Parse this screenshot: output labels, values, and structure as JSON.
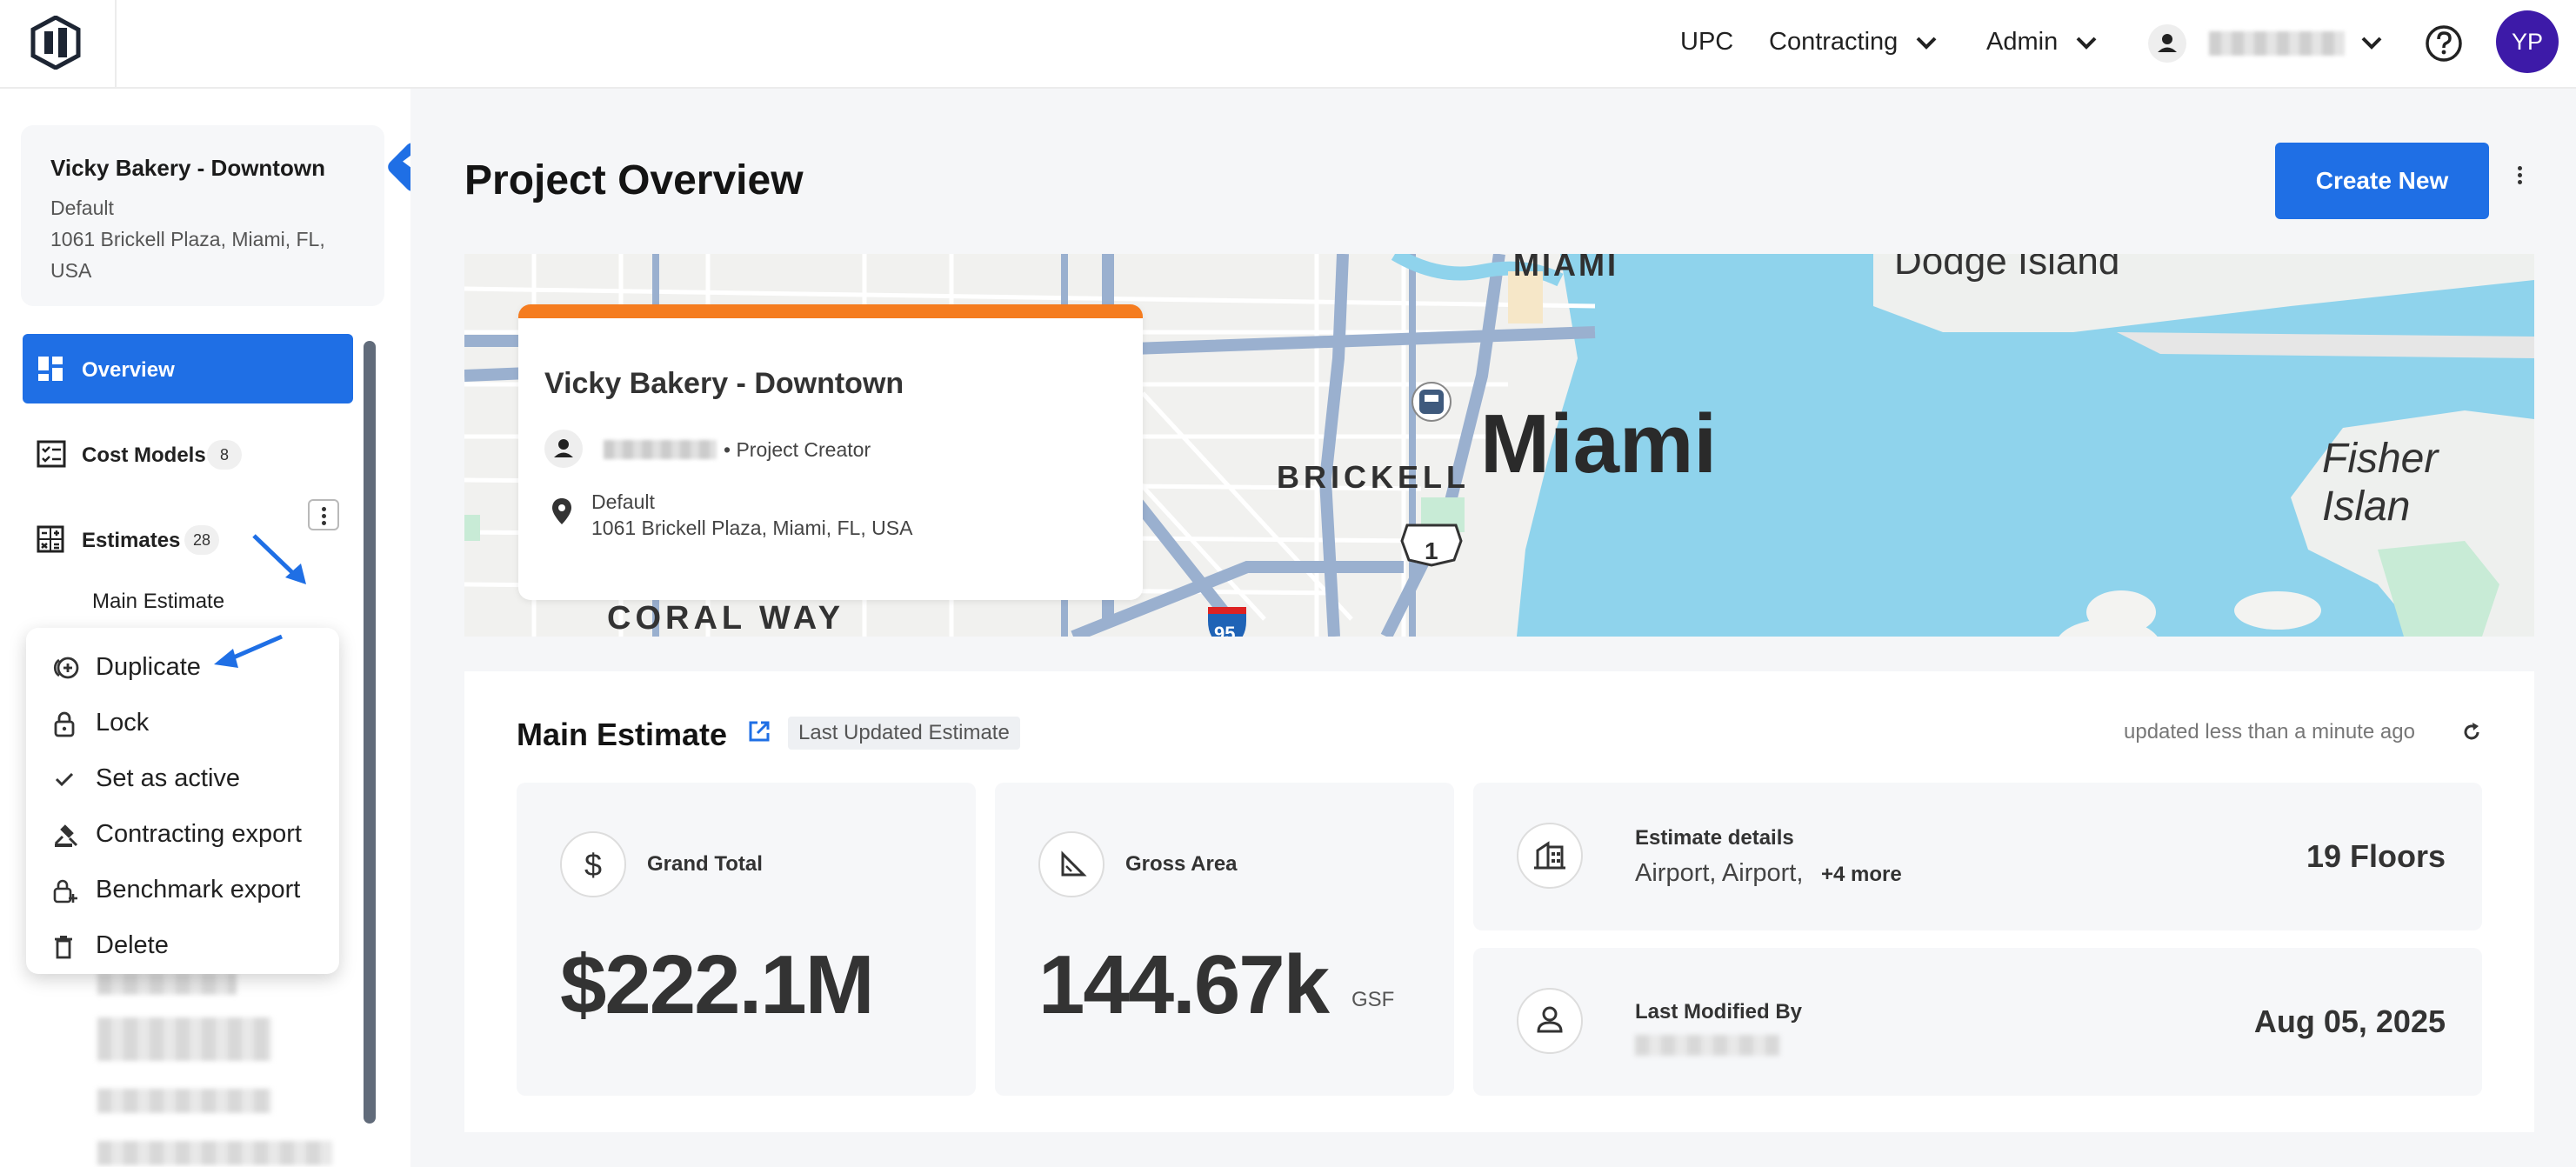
{
  "topbar": {
    "nav_upc": "UPC",
    "nav_contracting": "Contracting",
    "nav_admin": "Admin",
    "avatar_initials": "YP"
  },
  "sidebar": {
    "project_name": "Vicky Bakery - Downtown",
    "project_type": "Default",
    "project_address": "1061 Brickell Plaza, Miami, FL, USA",
    "items": [
      {
        "label": "Overview",
        "icon": "overview-grid-icon"
      },
      {
        "label": "Cost Models",
        "count": "8",
        "icon": "cost-models-icon"
      },
      {
        "label": "Estimates",
        "count": "28",
        "icon": "calculator-icon"
      }
    ],
    "sub_estimate": "Main Estimate"
  },
  "context_menu": {
    "items": [
      {
        "label": "Duplicate",
        "icon": "duplicate-icon"
      },
      {
        "label": "Lock",
        "icon": "lock-icon"
      },
      {
        "label": "Set as active",
        "icon": "check-icon"
      },
      {
        "label": "Contracting export",
        "icon": "gavel-icon"
      },
      {
        "label": "Benchmark export",
        "icon": "benchmark-lock-icon"
      },
      {
        "label": "Delete",
        "icon": "trash-icon"
      }
    ]
  },
  "main": {
    "title": "Project Overview",
    "create_button": "Create New"
  },
  "map": {
    "labels": {
      "miami_top": "MIAMI",
      "dodge_island": "Dodge Island",
      "brickell": "BRICKELL",
      "miami": "Miami",
      "fisher_island": "Fisher Islan",
      "coral_way": "CORAL WAY",
      "route_1": "1",
      "route_95": "95"
    },
    "card": {
      "title": "Vicky Bakery - Downtown",
      "role": "• Project Creator",
      "type": "Default",
      "address": "1061 Brickell Plaza, Miami, FL, USA"
    }
  },
  "estimate": {
    "title": "Main Estimate",
    "badge": "Last Updated Estimate",
    "updated": "updated less than a minute ago",
    "grand_total_label": "Grand Total",
    "grand_total_value": "$222.1M",
    "gross_area_label": "Gross Area",
    "gross_area_value": "144.67k",
    "gross_area_unit": "GSF",
    "details_label": "Estimate details",
    "details_value": "Airport, Airport,",
    "details_more": "+4 more",
    "floors": "19 Floors",
    "modified_label": "Last Modified By",
    "modified_date": "Aug 05, 2025"
  },
  "colors": {
    "accent": "#1f6fe5",
    "avatar": "#3d1aa8",
    "card_stripe": "#f57c1f",
    "water": "#8fd3ec"
  }
}
